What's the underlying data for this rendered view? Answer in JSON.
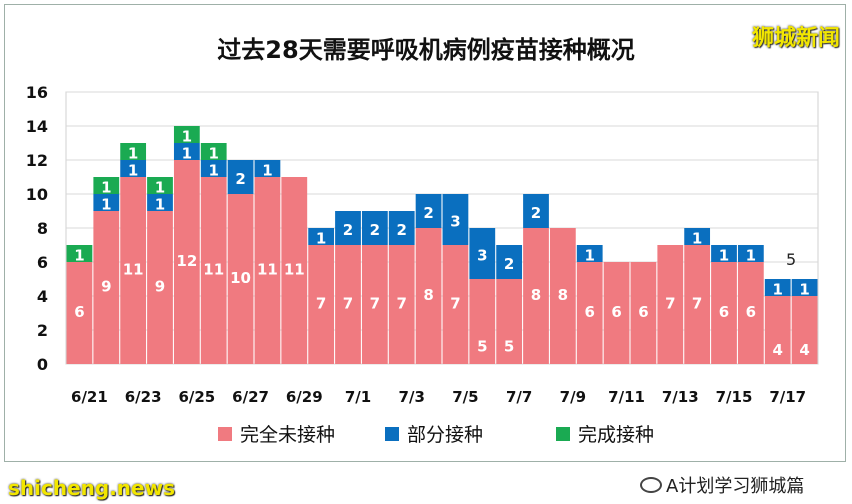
{
  "title": "过去28天需要呼吸机病例疫苗接种概况",
  "watermark_top": "狮城新闻",
  "watermark_bottom": "shicheng.news",
  "credit": "A计划学习狮城篇",
  "colors": {
    "unvaccinated": "#f07a80",
    "partial": "#0a6fbf",
    "full": "#1aaa52"
  },
  "chart_data": {
    "type": "bar",
    "stacked": true,
    "categories": [
      "6/21",
      "6/22",
      "6/23",
      "6/24",
      "6/25",
      "6/26",
      "6/27",
      "6/28",
      "6/29",
      "6/30",
      "7/1",
      "7/2",
      "7/3",
      "7/4",
      "7/5",
      "7/6",
      "7/7",
      "7/8",
      "7/9",
      "7/10",
      "7/11",
      "7/12",
      "7/13",
      "7/14",
      "7/15",
      "7/16",
      "7/17",
      "7/18"
    ],
    "tick_labels": [
      "6/21",
      "6/23",
      "6/25",
      "6/27",
      "6/29",
      "7/1",
      "7/3",
      "7/5",
      "7/7",
      "7/9",
      "7/11",
      "7/13",
      "7/15",
      "7/17"
    ],
    "series": [
      {
        "name": "完全未接种",
        "values": [
          6,
          9,
          11,
          9,
          12,
          11,
          10,
          11,
          11,
          7,
          7,
          7,
          7,
          8,
          7,
          5,
          5,
          8,
          8,
          6,
          6,
          6,
          7,
          7,
          6,
          6,
          4,
          4
        ]
      },
      {
        "name": "部分接种",
        "values": [
          0,
          1,
          1,
          1,
          1,
          1,
          2,
          1,
          0,
          1,
          2,
          2,
          2,
          2,
          3,
          3,
          2,
          2,
          0,
          1,
          0,
          0,
          0,
          1,
          1,
          1,
          1,
          1
        ]
      },
      {
        "name": "完成接种",
        "values": [
          1,
          1,
          1,
          1,
          1,
          1,
          0,
          0,
          0,
          0,
          0,
          0,
          0,
          0,
          0,
          0,
          0,
          0,
          0,
          0,
          0,
          0,
          0,
          0,
          0,
          0,
          0,
          0
        ]
      }
    ],
    "annotations": [
      {
        "category": "7/17",
        "text": "5"
      }
    ],
    "ylim": [
      0,
      16
    ],
    "yticks": [
      0,
      2,
      4,
      6,
      8,
      10,
      12,
      14,
      16
    ],
    "grid": true,
    "legend": "bottom"
  }
}
